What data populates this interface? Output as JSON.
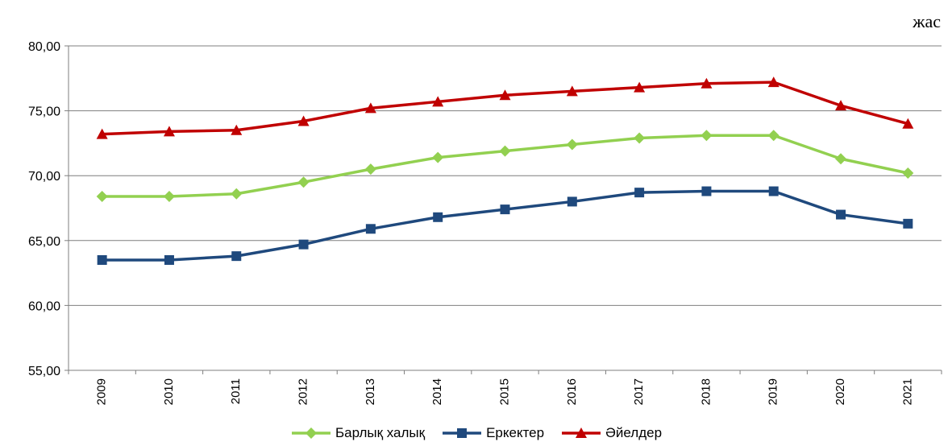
{
  "unit_label": "жас",
  "chart_data": {
    "type": "line",
    "title": "",
    "xlabel": "",
    "ylabel": "жас",
    "ylim": [
      55,
      80
    ],
    "y_ticks": [
      "55,00",
      "60,00",
      "65,00",
      "70,00",
      "75,00",
      "80,00"
    ],
    "grid": true,
    "legend_position": "bottom",
    "categories": [
      "2009",
      "2010",
      "2011",
      "2012",
      "2013",
      "2014",
      "2015",
      "2016",
      "2017",
      "2018",
      "2019",
      "2020",
      "2021"
    ],
    "series": [
      {
        "name": "Барлық халық",
        "color": "#92d050",
        "marker": "diamond",
        "values": [
          68.4,
          68.4,
          68.6,
          69.5,
          70.5,
          71.4,
          71.9,
          72.4,
          72.9,
          73.1,
          73.1,
          71.3,
          70.2
        ]
      },
      {
        "name": "Еркектер",
        "color": "#1f497d",
        "marker": "square",
        "values": [
          63.5,
          63.5,
          63.8,
          64.7,
          65.9,
          66.8,
          67.4,
          68.0,
          68.7,
          68.8,
          68.8,
          67.0,
          66.3
        ]
      },
      {
        "name": "Әйелдер",
        "color": "#c00000",
        "marker": "triangle",
        "values": [
          73.2,
          73.4,
          73.5,
          74.2,
          75.2,
          75.7,
          76.2,
          76.5,
          76.8,
          77.1,
          77.2,
          75.4,
          74.0
        ]
      }
    ]
  }
}
